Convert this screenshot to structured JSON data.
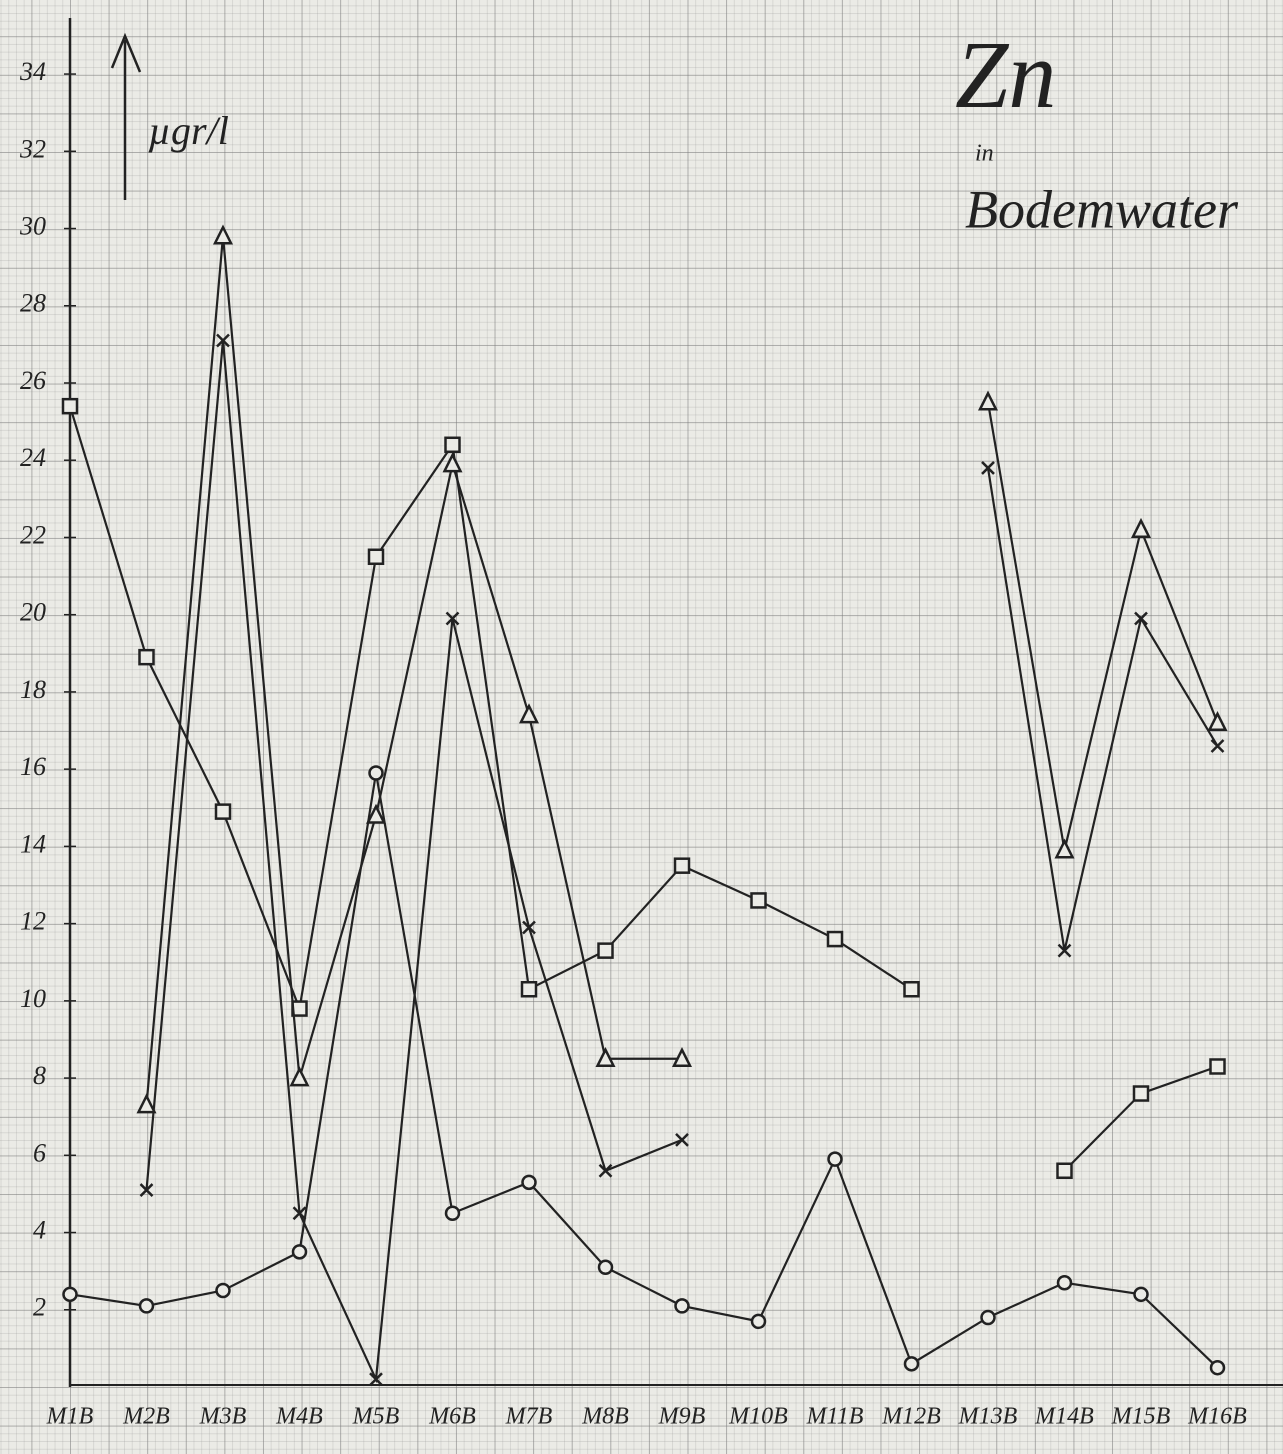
{
  "chart_data": {
    "type": "line",
    "title": "Zn",
    "subtitle": [
      "in",
      "Bodemwater"
    ],
    "y_label": "µgr/l",
    "categories": [
      "M1B",
      "M2B",
      "M3B",
      "M4B",
      "M5B",
      "M6B",
      "M7B",
      "M8B",
      "M9B",
      "M10B",
      "M11B",
      "M12B",
      "M13B",
      "M14B",
      "M15B",
      "M16B"
    ],
    "ylim": [
      0,
      35.4
    ],
    "yticks": [
      2,
      4,
      6,
      8,
      10,
      12,
      14,
      16,
      18,
      20,
      22,
      24,
      26,
      28,
      30,
      32,
      34
    ],
    "series": [
      {
        "marker": "square",
        "color": "#222222",
        "values": [
          25.4,
          18.9,
          14.9,
          9.8,
          21.5,
          24.4,
          10.3,
          11.3,
          13.5,
          12.6,
          11.6,
          10.3,
          null,
          5.6,
          7.6,
          8.3
        ]
      },
      {
        "marker": "triangle",
        "color": "#222222",
        "values": [
          null,
          7.3,
          29.8,
          8.0,
          14.8,
          23.9,
          17.4,
          8.5,
          8.5,
          null,
          null,
          null,
          25.5,
          13.9,
          22.2,
          17.2
        ]
      },
      {
        "marker": "x",
        "color": "#222222",
        "values": [
          null,
          5.1,
          27.1,
          4.5,
          0.2,
          19.9,
          11.9,
          5.6,
          6.4,
          null,
          null,
          null,
          23.8,
          11.3,
          19.9,
          16.6
        ]
      },
      {
        "marker": "circle",
        "color": "#222222",
        "values": [
          2.4,
          2.1,
          2.5,
          3.5,
          15.9,
          4.5,
          5.3,
          3.1,
          2.1,
          1.7,
          5.9,
          0.6,
          1.8,
          2.7,
          2.4,
          0.5
        ]
      }
    ]
  }
}
